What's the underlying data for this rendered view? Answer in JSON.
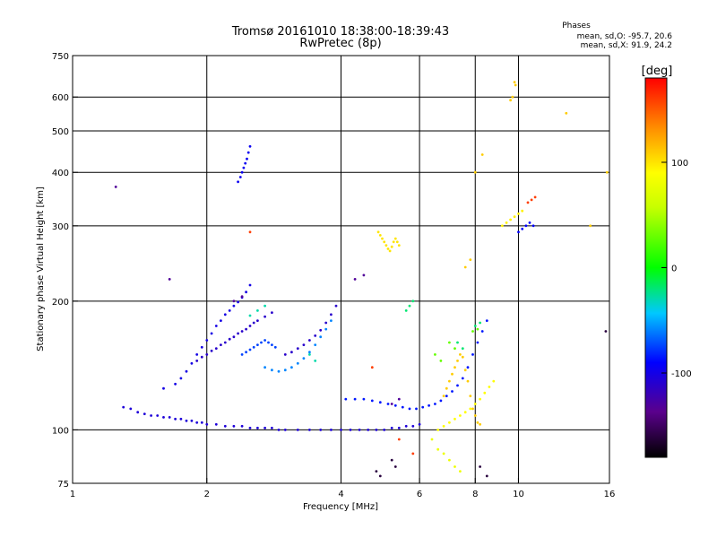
{
  "chart_data": {
    "type": "scatter",
    "title": "Tromsø 20161010 18:38:00-18:39:43",
    "subtitle": "RwPretec (8p)",
    "xlabel": "Frequency [MHz]",
    "ylabel": "Stationary phase Virtual Height [km]",
    "x_scale": "log",
    "y_scale": "log",
    "xlim": [
      1,
      16
    ],
    "ylim": [
      75,
      750
    ],
    "x_ticks": [
      1,
      2,
      4,
      6,
      8,
      10,
      16
    ],
    "y_ticks": [
      75,
      100,
      200,
      300,
      400,
      500,
      600,
      750
    ],
    "x_gridlines": [
      2,
      4,
      6,
      8,
      10
    ],
    "y_gridlines": [
      100,
      200,
      300,
      400,
      500,
      600
    ],
    "grid": true,
    "stats_header": "Phases",
    "stats_lines": [
      "mean, sd,O: -95.7, 20.6",
      "mean, sd,X:  91.9, 24.2"
    ],
    "colorbar": {
      "label": "[deg]",
      "range": [
        -180,
        180
      ],
      "ticks": [
        100,
        0,
        -100
      ],
      "tick_labels": [
        "100",
        "0",
        "-100"
      ]
    },
    "series": [
      {
        "phase": -105,
        "points": [
          [
            1.3,
            113
          ],
          [
            1.35,
            112
          ],
          [
            1.4,
            110
          ],
          [
            1.45,
            109
          ],
          [
            1.5,
            108
          ],
          [
            1.55,
            108
          ],
          [
            1.6,
            107
          ],
          [
            1.65,
            107
          ],
          [
            1.7,
            106
          ],
          [
            1.75,
            106
          ],
          [
            1.8,
            105
          ],
          [
            1.85,
            105
          ],
          [
            1.9,
            104
          ],
          [
            1.95,
            104
          ],
          [
            2.0,
            103
          ],
          [
            2.1,
            103
          ],
          [
            2.2,
            102
          ],
          [
            2.3,
            102
          ],
          [
            2.4,
            102
          ],
          [
            2.5,
            101
          ],
          [
            2.6,
            101
          ],
          [
            2.7,
            101
          ],
          [
            2.8,
            101
          ],
          [
            2.9,
            100
          ],
          [
            3.0,
            100
          ],
          [
            3.2,
            100
          ],
          [
            3.4,
            100
          ],
          [
            3.6,
            100
          ],
          [
            3.8,
            100
          ],
          [
            4.0,
            100
          ],
          [
            4.2,
            100
          ],
          [
            4.4,
            100
          ],
          [
            4.6,
            100
          ],
          [
            4.8,
            100
          ],
          [
            5.0,
            100
          ],
          [
            5.2,
            101
          ],
          [
            5.4,
            101
          ],
          [
            5.6,
            102
          ],
          [
            5.8,
            102
          ],
          [
            6.0,
            103
          ]
        ]
      },
      {
        "phase": -85,
        "points": [
          [
            4.1,
            118
          ],
          [
            4.3,
            118
          ],
          [
            4.5,
            118
          ],
          [
            4.7,
            117
          ],
          [
            4.9,
            116
          ],
          [
            5.1,
            115
          ],
          [
            5.3,
            114
          ],
          [
            5.5,
            113
          ],
          [
            5.7,
            112
          ],
          [
            5.9,
            112
          ],
          [
            6.1,
            113
          ],
          [
            6.3,
            114
          ],
          [
            6.5,
            115
          ],
          [
            6.7,
            117
          ],
          [
            6.9,
            120
          ],
          [
            7.1,
            123
          ],
          [
            7.3,
            127
          ],
          [
            7.5,
            132
          ],
          [
            7.7,
            140
          ],
          [
            7.9,
            150
          ],
          [
            8.1,
            160
          ],
          [
            8.3,
            170
          ],
          [
            8.5,
            180
          ]
        ]
      },
      {
        "phase": -100,
        "points": [
          [
            1.6,
            125
          ],
          [
            1.7,
            128
          ],
          [
            1.75,
            132
          ],
          [
            1.8,
            137
          ],
          [
            1.85,
            143
          ],
          [
            1.9,
            150
          ],
          [
            1.95,
            156
          ],
          [
            2.0,
            162
          ],
          [
            2.05,
            168
          ],
          [
            2.1,
            175
          ],
          [
            2.15,
            180
          ],
          [
            2.2,
            186
          ],
          [
            2.25,
            190
          ],
          [
            2.3,
            195
          ],
          [
            2.35,
            199
          ],
          [
            2.4,
            204
          ],
          [
            2.45,
            210
          ],
          [
            2.5,
            218
          ]
        ]
      },
      {
        "phase": -110,
        "points": [
          [
            1.9,
            145
          ],
          [
            1.95,
            148
          ],
          [
            2.0,
            150
          ],
          [
            2.05,
            153
          ],
          [
            2.1,
            155
          ],
          [
            2.15,
            158
          ],
          [
            2.2,
            160
          ],
          [
            2.25,
            163
          ],
          [
            2.3,
            165
          ],
          [
            2.35,
            168
          ],
          [
            2.4,
            170
          ],
          [
            2.45,
            172
          ],
          [
            2.5,
            175
          ],
          [
            2.55,
            178
          ],
          [
            2.6,
            180
          ],
          [
            2.7,
            184
          ],
          [
            2.8,
            188
          ]
        ]
      },
      {
        "phase": -75,
        "points": [
          [
            2.4,
            150
          ],
          [
            2.45,
            152
          ],
          [
            2.5,
            154
          ],
          [
            2.55,
            156
          ],
          [
            2.6,
            158
          ],
          [
            2.65,
            160
          ],
          [
            2.7,
            162
          ],
          [
            2.75,
            160
          ],
          [
            2.8,
            158
          ],
          [
            2.85,
            156
          ]
        ]
      },
      {
        "phase": -60,
        "points": [
          [
            2.7,
            140
          ],
          [
            2.8,
            138
          ],
          [
            2.9,
            137
          ],
          [
            3.0,
            138
          ],
          [
            3.1,
            140
          ],
          [
            3.2,
            143
          ],
          [
            3.3,
            147
          ],
          [
            3.4,
            152
          ],
          [
            3.5,
            158
          ],
          [
            3.6,
            165
          ],
          [
            3.7,
            172
          ],
          [
            3.8,
            180
          ]
        ]
      },
      {
        "phase": -110,
        "points": [
          [
            3.0,
            150
          ],
          [
            3.1,
            152
          ],
          [
            3.2,
            155
          ],
          [
            3.3,
            158
          ],
          [
            3.4,
            162
          ],
          [
            3.5,
            166
          ],
          [
            3.6,
            171
          ],
          [
            3.7,
            178
          ],
          [
            3.8,
            186
          ],
          [
            3.9,
            195
          ]
        ]
      },
      {
        "phase": -95,
        "points": [
          [
            2.35,
            380
          ],
          [
            2.38,
            390
          ],
          [
            2.4,
            400
          ],
          [
            2.42,
            410
          ],
          [
            2.44,
            420
          ],
          [
            2.46,
            430
          ],
          [
            2.48,
            445
          ],
          [
            2.5,
            460
          ]
        ]
      },
      {
        "phase": 100,
        "points": [
          [
            4.85,
            290
          ],
          [
            4.9,
            285
          ],
          [
            4.95,
            280
          ],
          [
            5.0,
            275
          ],
          [
            5.05,
            270
          ],
          [
            5.1,
            265
          ],
          [
            5.15,
            262
          ],
          [
            5.2,
            268
          ],
          [
            5.25,
            275
          ],
          [
            5.3,
            280
          ],
          [
            5.35,
            275
          ],
          [
            5.4,
            270
          ]
        ]
      },
      {
        "phase": 110,
        "points": [
          [
            6.8,
            120
          ],
          [
            6.9,
            125
          ],
          [
            7.0,
            130
          ],
          [
            7.1,
            135
          ],
          [
            7.2,
            140
          ],
          [
            7.3,
            145
          ],
          [
            7.4,
            150
          ],
          [
            7.5,
            148
          ],
          [
            7.6,
            138
          ],
          [
            7.7,
            130
          ],
          [
            7.8,
            120
          ],
          [
            7.9,
            112
          ],
          [
            8.0,
            108
          ],
          [
            8.1,
            104
          ],
          [
            8.2,
            103
          ]
        ]
      },
      {
        "phase": 90,
        "points": [
          [
            6.6,
            100
          ],
          [
            6.8,
            102
          ],
          [
            7.0,
            104
          ],
          [
            7.2,
            106
          ],
          [
            7.4,
            108
          ],
          [
            7.6,
            110
          ],
          [
            7.8,
            112
          ],
          [
            8.0,
            115
          ],
          [
            8.2,
            118
          ],
          [
            8.4,
            122
          ],
          [
            8.6,
            126
          ],
          [
            8.8,
            130
          ]
        ]
      },
      {
        "phase": 80,
        "points": [
          [
            6.4,
            95
          ],
          [
            6.6,
            90
          ],
          [
            6.8,
            88
          ],
          [
            7.0,
            85
          ],
          [
            7.2,
            82
          ],
          [
            7.4,
            80
          ]
        ]
      },
      {
        "phase": 95,
        "points": [
          [
            9.2,
            300
          ],
          [
            9.4,
            305
          ],
          [
            9.6,
            310
          ],
          [
            9.8,
            315
          ],
          [
            10.0,
            320
          ],
          [
            10.2,
            325
          ]
        ]
      },
      {
        "phase": -90,
        "points": [
          [
            10.0,
            290
          ],
          [
            10.2,
            295
          ],
          [
            10.4,
            300
          ],
          [
            10.6,
            305
          ],
          [
            10.8,
            300
          ]
        ]
      },
      {
        "phase": 110,
        "points": [
          [
            9.8,
            650
          ],
          [
            9.85,
            640
          ],
          [
            9.7,
            600
          ],
          [
            9.6,
            590
          ],
          [
            12.8,
            550
          ],
          [
            14.5,
            300
          ],
          [
            15.8,
            400
          ],
          [
            8.3,
            440
          ],
          [
            8.0,
            400
          ],
          [
            7.8,
            250
          ],
          [
            7.6,
            240
          ]
        ]
      },
      {
        "phase": -160,
        "points": [
          [
            4.8,
            80
          ],
          [
            4.9,
            78
          ],
          [
            5.2,
            85
          ],
          [
            5.3,
            82
          ],
          [
            8.2,
            82
          ],
          [
            8.5,
            78
          ],
          [
            15.7,
            170
          ]
        ]
      },
      {
        "phase": -20,
        "points": [
          [
            5.6,
            190
          ],
          [
            5.7,
            195
          ],
          [
            5.8,
            200
          ],
          [
            8.0,
            175
          ],
          [
            8.2,
            178
          ],
          [
            7.3,
            160
          ],
          [
            7.5,
            155
          ]
        ]
      },
      {
        "phase": 30,
        "points": [
          [
            6.5,
            150
          ],
          [
            6.7,
            145
          ],
          [
            7.0,
            160
          ],
          [
            7.2,
            155
          ],
          [
            7.9,
            170
          ],
          [
            8.1,
            172
          ]
        ]
      },
      {
        "phase": -30,
        "points": [
          [
            3.4,
            150
          ],
          [
            3.5,
            145
          ],
          [
            2.5,
            185
          ],
          [
            2.6,
            190
          ],
          [
            2.7,
            195
          ]
        ]
      },
      {
        "phase": 160,
        "points": [
          [
            4.7,
            140
          ],
          [
            5.4,
            95
          ],
          [
            5.8,
            88
          ],
          [
            2.5,
            290
          ],
          [
            10.5,
            340
          ],
          [
            10.7,
            345
          ],
          [
            10.9,
            350
          ]
        ]
      },
      {
        "phase": -130,
        "points": [
          [
            1.25,
            370
          ],
          [
            1.65,
            225
          ],
          [
            2.3,
            200
          ],
          [
            2.4,
            205
          ],
          [
            4.3,
            225
          ],
          [
            4.5,
            230
          ],
          [
            5.2,
            115
          ],
          [
            5.4,
            118
          ]
        ]
      }
    ]
  }
}
